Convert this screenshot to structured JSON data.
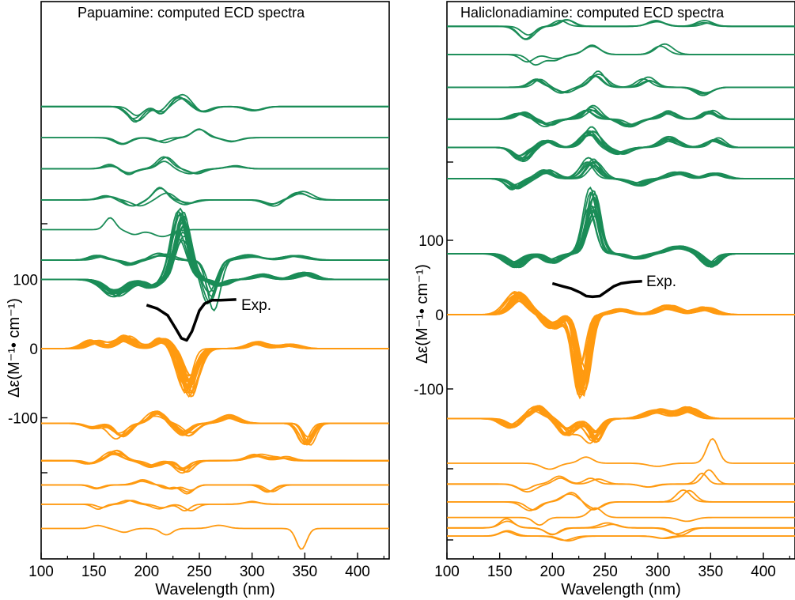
{
  "chart_data": [
    {
      "type": "line",
      "title": "Papuamine: computed ECD spectra",
      "xlabel": "Wavelength (nm)",
      "ylabel": "Δε(M⁻¹• cm⁻¹)",
      "x_range": [
        100,
        430
      ],
      "x_ticks": [
        "100",
        "150",
        "200",
        "250",
        "300",
        "350",
        "400"
      ],
      "y_ticks": [
        "100",
        "0",
        "-100"
      ],
      "annotation": "Exp.",
      "colors": {
        "green": "#1a8c57",
        "orange": "#ff9a10",
        "exp": "#000000"
      },
      "series": [
        {
          "group": "green",
          "stacked_offset": 350,
          "lines": 4,
          "scale": 0.9,
          "peaks": [
            [
              188,
              -20,
              10
            ],
            [
              215,
              -10,
              8
            ],
            [
              232,
              18,
              10
            ],
            [
              255,
              -8,
              10
            ],
            [
              300,
              -6,
              12
            ]
          ]
        },
        {
          "group": "green",
          "stacked_offset": 305,
          "lines": 2,
          "scale": 1.0,
          "peaks": [
            [
              180,
              -8,
              10
            ],
            [
              215,
              -6,
              10
            ],
            [
              248,
              14,
              10
            ],
            [
              280,
              -6,
              12
            ]
          ]
        },
        {
          "group": "green",
          "stacked_offset": 260,
          "lines": 3,
          "scale": 1.0,
          "peaks": [
            [
              165,
              6,
              10
            ],
            [
              185,
              -8,
              10
            ],
            [
              218,
              14,
              9
            ],
            [
              245,
              -6,
              10
            ],
            [
              285,
              4,
              12
            ]
          ]
        },
        {
          "group": "green",
          "stacked_offset": 215,
          "lines": 3,
          "scale": 1.0,
          "peaks": [
            [
              165,
              5,
              10
            ],
            [
              190,
              -10,
              10
            ],
            [
              216,
              14,
              9
            ],
            [
              240,
              -6,
              10
            ],
            [
              320,
              -8,
              10
            ],
            [
              345,
              10,
              12
            ]
          ]
        },
        {
          "group": "green",
          "stacked_offset": 172,
          "lines": 1,
          "scale": 1.0,
          "peaks": [
            [
              165,
              16,
              8
            ],
            [
              185,
              -8,
              10
            ],
            [
              215,
              -8,
              12
            ]
          ]
        },
        {
          "group": "green",
          "stacked_offset": 128,
          "lines": 6,
          "scale": 1.0,
          "peaks": [
            [
              155,
              6,
              10
            ],
            [
              185,
              -6,
              10
            ],
            [
              215,
              8,
              12
            ],
            [
              262,
              -60,
              9
            ],
            [
              300,
              6,
              14
            ],
            [
              340,
              6,
              14
            ]
          ]
        },
        {
          "group": "green",
          "stacked_offset": 100,
          "lines": 18,
          "scale": 1.0,
          "peaks": [
            [
              170,
              -20,
              14
            ],
            [
              205,
              -10,
              10
            ],
            [
              233,
              80,
              10
            ],
            [
              270,
              -8,
              10
            ],
            [
              310,
              6,
              12
            ],
            [
              350,
              8,
              12
            ]
          ]
        },
        {
          "group": "orange",
          "stacked_offset": 0,
          "lines": 22,
          "scale": 1.0,
          "peaks": [
            [
              150,
              10,
              10
            ],
            [
              180,
              15,
              12
            ],
            [
              215,
              12,
              10
            ],
            [
              240,
              -55,
              10
            ],
            [
              305,
              8,
              12
            ],
            [
              335,
              5,
              12
            ]
          ]
        },
        {
          "group": "orange",
          "stacked_offset": -108,
          "lines": 8,
          "scale": 1.0,
          "peaks": [
            [
              150,
              -6,
              10
            ],
            [
              175,
              -20,
              10
            ],
            [
              210,
              15,
              10
            ],
            [
              238,
              -15,
              10
            ],
            [
              280,
              10,
              12
            ],
            [
              352,
              -28,
              8
            ]
          ]
        },
        {
          "group": "orange",
          "stacked_offset": -162,
          "lines": 6,
          "scale": 1.0,
          "peaks": [
            [
              145,
              -5,
              8
            ],
            [
              170,
              12,
              10
            ],
            [
              205,
              -8,
              10
            ],
            [
              235,
              -14,
              9
            ],
            [
              305,
              8,
              12
            ],
            [
              330,
              5,
              10
            ]
          ]
        },
        {
          "group": "orange",
          "stacked_offset": -197,
          "lines": 3,
          "scale": 1.0,
          "peaks": [
            [
              155,
              -6,
              8
            ],
            [
              195,
              6,
              9
            ],
            [
              220,
              -6,
              8
            ],
            [
              238,
              -10,
              8
            ],
            [
              318,
              -10,
              9
            ]
          ]
        },
        {
          "group": "orange",
          "stacked_offset": -225,
          "lines": 2,
          "scale": 1.0,
          "peaks": [
            [
              155,
              -6,
              8
            ],
            [
              185,
              6,
              8
            ],
            [
              215,
              -6,
              8
            ],
            [
              240,
              -12,
              8
            ],
            [
              300,
              4,
              10
            ]
          ]
        },
        {
          "group": "orange",
          "stacked_offset": -260,
          "lines": 1,
          "scale": 1.0,
          "peaks": [
            [
              155,
              6,
              8
            ],
            [
              178,
              -6,
              8
            ],
            [
              222,
              -12,
              8
            ],
            [
              270,
              4,
              10
            ],
            [
              345,
              -28,
              8
            ]
          ]
        }
      ],
      "experimental": {
        "x": [
          200,
          210,
          220,
          228,
          233,
          238,
          243,
          250,
          255,
          262,
          270,
          285
        ],
        "y": [
          63,
          58,
          48,
          28,
          15,
          12,
          25,
          55,
          65,
          70,
          70,
          71
        ]
      }
    },
    {
      "type": "line",
      "title": "Haliclonadiamine: computed ECD spectra",
      "xlabel": "Wavelength (nm)",
      "ylabel": "Δε(M⁻¹• cm⁻¹)",
      "x_range": [
        100,
        430
      ],
      "x_ticks": [
        "100",
        "150",
        "200",
        "250",
        "300",
        "350",
        "400"
      ],
      "y_ticks": [
        "100",
        "0",
        "-100"
      ],
      "annotation": "Exp.",
      "colors": {
        "green": "#1a8c57",
        "orange": "#ff9a10",
        "exp": "#000000"
      },
      "series": [
        {
          "group": "green",
          "stacked_offset": 388,
          "lines": 3,
          "scale": 1.0,
          "peaks": [
            [
              175,
              -15,
              10
            ],
            [
              210,
              8,
              10
            ],
            [
              300,
              8,
              12
            ],
            [
              345,
              6,
              10
            ]
          ]
        },
        {
          "group": "green",
          "stacked_offset": 350,
          "lines": 2,
          "scale": 1.0,
          "peaks": [
            [
              180,
              -12,
              10
            ],
            [
              205,
              -8,
              10
            ],
            [
              235,
              12,
              10
            ],
            [
              305,
              12,
              10
            ]
          ]
        },
        {
          "group": "green",
          "stacked_offset": 306,
          "lines": 4,
          "scale": 1.0,
          "peaks": [
            [
              185,
              10,
              9
            ],
            [
              212,
              -8,
              9
            ],
            [
              240,
              18,
              10
            ],
            [
              290,
              12,
              10
            ],
            [
              345,
              -10,
              10
            ]
          ]
        },
        {
          "group": "green",
          "stacked_offset": 263,
          "lines": 6,
          "scale": 1.0,
          "peaks": [
            [
              170,
              8,
              10
            ],
            [
              195,
              -8,
              10
            ],
            [
              235,
              15,
              10
            ],
            [
              275,
              -8,
              10
            ],
            [
              310,
              10,
              10
            ],
            [
              350,
              10,
              10
            ]
          ]
        },
        {
          "group": "green",
          "stacked_offset": 225,
          "lines": 8,
          "scale": 1.0,
          "peaks": [
            [
              170,
              -15,
              10
            ],
            [
              195,
              8,
              9
            ],
            [
              235,
              22,
              10
            ],
            [
              265,
              -8,
              10
            ],
            [
              310,
              12,
              12
            ],
            [
              355,
              10,
              10
            ]
          ]
        },
        {
          "group": "green",
          "stacked_offset": 183,
          "lines": 10,
          "scale": 1.0,
          "peaks": [
            [
              165,
              -12,
              10
            ],
            [
              195,
              10,
              10
            ],
            [
              237,
              22,
              10
            ],
            [
              280,
              -8,
              12
            ],
            [
              320,
              8,
              12
            ],
            [
              355,
              6,
              10
            ]
          ]
        },
        {
          "group": "green",
          "stacked_offset": 82,
          "lines": 14,
          "scale": 1.0,
          "peaks": [
            [
              165,
              -15,
              12
            ],
            [
              200,
              -10,
              10
            ],
            [
              237,
              70,
              9
            ],
            [
              280,
              -6,
              12
            ],
            [
              320,
              8,
              14
            ],
            [
              350,
              -14,
              10
            ]
          ]
        },
        {
          "group": "orange",
          "stacked_offset": 0,
          "lines": 24,
          "scale": 1.0,
          "peaks": [
            [
              168,
              25,
              12
            ],
            [
              200,
              -15,
              10
            ],
            [
              228,
              -88,
              8
            ],
            [
              265,
              6,
              12
            ],
            [
              310,
              10,
              14
            ],
            [
              345,
              8,
              12
            ]
          ]
        },
        {
          "group": "orange",
          "stacked_offset": -140,
          "lines": 14,
          "scale": 1.0,
          "peaks": [
            [
              160,
              -10,
              10
            ],
            [
              185,
              14,
              10
            ],
            [
              215,
              -18,
              10
            ],
            [
              240,
              -25,
              9
            ],
            [
              300,
              10,
              14
            ],
            [
              330,
              12,
              12
            ]
          ]
        },
        {
          "group": "orange",
          "stacked_offset": -200,
          "lines": 1,
          "scale": 1.0,
          "peaks": [
            [
              195,
              -10,
              10
            ],
            [
              230,
              8,
              10
            ],
            [
              300,
              -4,
              12
            ],
            [
              353,
              32,
              8
            ]
          ]
        },
        {
          "group": "orange",
          "stacked_offset": -228,
          "lines": 2,
          "scale": 1.0,
          "peaks": [
            [
              175,
              -10,
              10
            ],
            [
              205,
              10,
              10
            ],
            [
              240,
              8,
              9
            ],
            [
              290,
              -5,
              10
            ],
            [
              345,
              20,
              8
            ]
          ]
        },
        {
          "group": "orange",
          "stacked_offset": -252,
          "lines": 2,
          "scale": 1.0,
          "peaks": [
            [
              180,
              -15,
              9
            ],
            [
              215,
              10,
              10
            ],
            [
              240,
              -10,
              9
            ],
            [
              328,
              14,
              9
            ]
          ]
        },
        {
          "group": "orange",
          "stacked_offset": -273,
          "lines": 1,
          "scale": 1.0,
          "peaks": [
            [
              190,
              -8,
              9
            ],
            [
              240,
              12,
              10
            ],
            [
              330,
              -6,
              10
            ]
          ]
        },
        {
          "group": "orange",
          "stacked_offset": -287,
          "lines": 2,
          "scale": 1.0,
          "peaks": [
            [
              155,
              10,
              9
            ],
            [
              200,
              -8,
              10
            ],
            [
              255,
              6,
              10
            ],
            [
              320,
              -8,
              10
            ]
          ]
        },
        {
          "group": "orange",
          "stacked_offset": -298,
          "lines": 2,
          "scale": 1.0,
          "peaks": [
            [
              160,
              6,
              9
            ],
            [
              215,
              -6,
              10
            ],
            [
              305,
              -4,
              10
            ]
          ]
        }
      ],
      "experimental": {
        "x": [
          200,
          210,
          218,
          226,
          232,
          238,
          245,
          252,
          258,
          265,
          275,
          285
        ],
        "y": [
          42,
          38,
          35,
          30,
          25,
          24,
          25,
          32,
          38,
          42,
          44,
          45
        ]
      }
    }
  ]
}
